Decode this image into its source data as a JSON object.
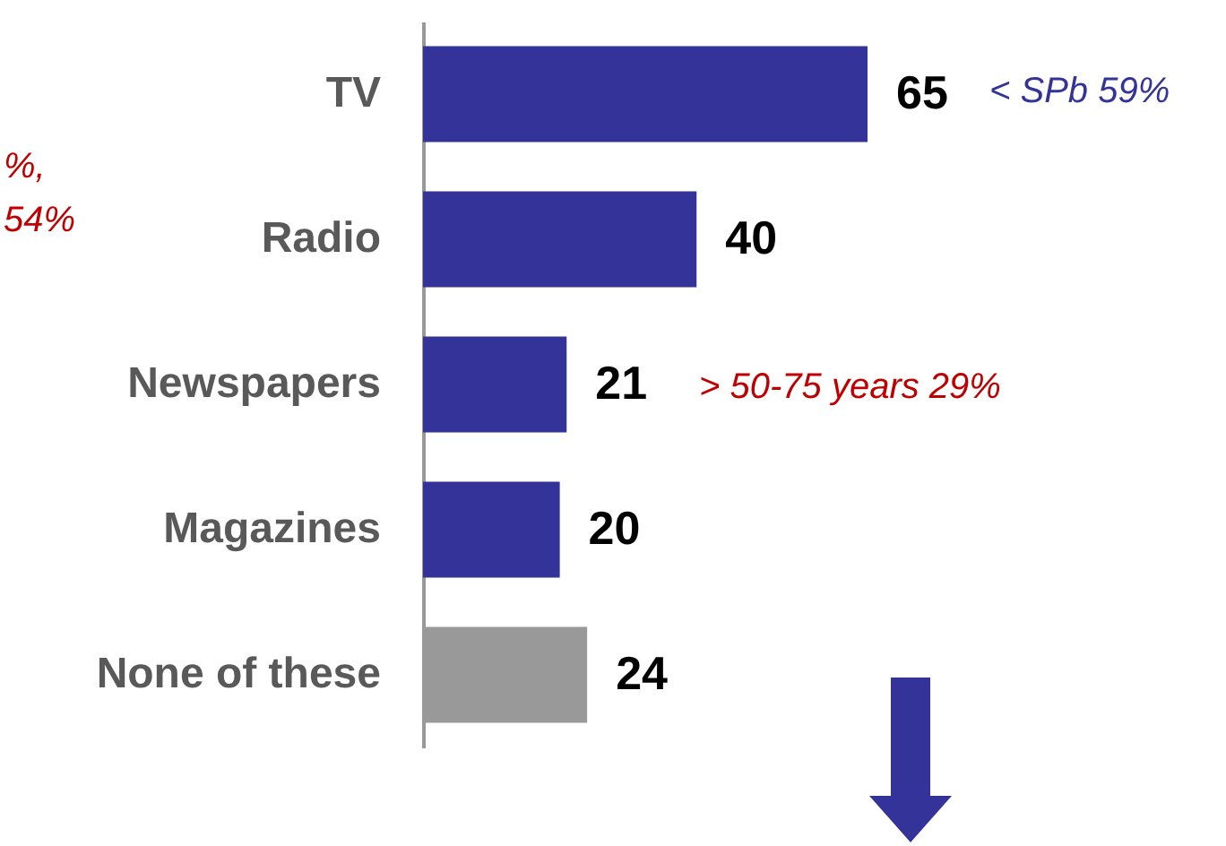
{
  "chart_data": {
    "type": "bar",
    "orientation": "horizontal",
    "categories": [
      "TV",
      "Radio",
      "Newspapers",
      "Magazines",
      "None of these"
    ],
    "values": [
      65,
      40,
      21,
      20,
      24
    ],
    "colors": [
      "#333399",
      "#333399",
      "#333399",
      "#333399",
      "#999999"
    ],
    "data_labels": true,
    "annotations": [
      "< SPb 59%",
      "> 50-75 years 29%",
      "%,",
      "54%"
    ]
  }
}
